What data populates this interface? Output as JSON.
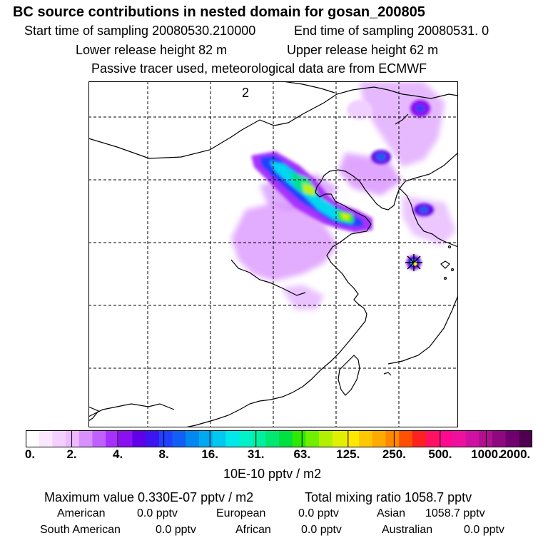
{
  "header": {
    "title": "BC  source contributions in nested domain for gosan_200805",
    "start_time": "Start time of sampling 20080530.210000",
    "end_time": "End time of sampling 20080531.     0",
    "lower_height": "Lower release height   82 m",
    "upper_height": "Upper release height   62 m",
    "tracer_note": "Passive tracer used, meteorological data are from ECMWF"
  },
  "map": {
    "panel_label": "2",
    "receptor_marker": "star-marker"
  },
  "colorbar": {
    "tick_labels": [
      "0.",
      "2.",
      "4.",
      "8.",
      "16.",
      "31.",
      "63.",
      "125.",
      "250.",
      "500.",
      "1000.",
      "2000."
    ],
    "unit_label": "10E-10 pptv / m2",
    "colors": [
      "#ffffff",
      "#fbe8ff",
      "#f5d0ff",
      "#efb8ff",
      "#d890ff",
      "#c060ff",
      "#a830ff",
      "#8a10f0",
      "#6000e8",
      "#3c14f0",
      "#2040ff",
      "#1060f5",
      "#0088f0",
      "#00a8f0",
      "#00c8f0",
      "#00e8ec",
      "#00f0c8",
      "#00f0a0",
      "#00e870",
      "#00e040",
      "#30e800",
      "#70f000",
      "#b0f000",
      "#e0f000",
      "#ffe800",
      "#ffc800",
      "#ffaa00",
      "#ff8800",
      "#ff5000",
      "#ff2020",
      "#ff1060",
      "#ff0890",
      "#f010a0",
      "#d010a0",
      "#b01090",
      "#900880",
      "#700070",
      "#500050"
    ]
  },
  "stats": {
    "max_value": "Maximum value  0.330E-07 pptv / m2",
    "total_mixing": "Total mixing ratio     1058.7 pptv",
    "american_label": "American",
    "american_value": "0.0 pptv",
    "european_label": "European",
    "european_value": "0.0 pptv",
    "asian_label": "Asian",
    "asian_value": "1058.7 pptv",
    "south_american_label": "South American",
    "south_american_value": "0.0 pptv",
    "african_label": "African",
    "african_value": "0.0 pptv",
    "australian_label": "Australian",
    "australian_value": "0.0 pptv"
  }
}
